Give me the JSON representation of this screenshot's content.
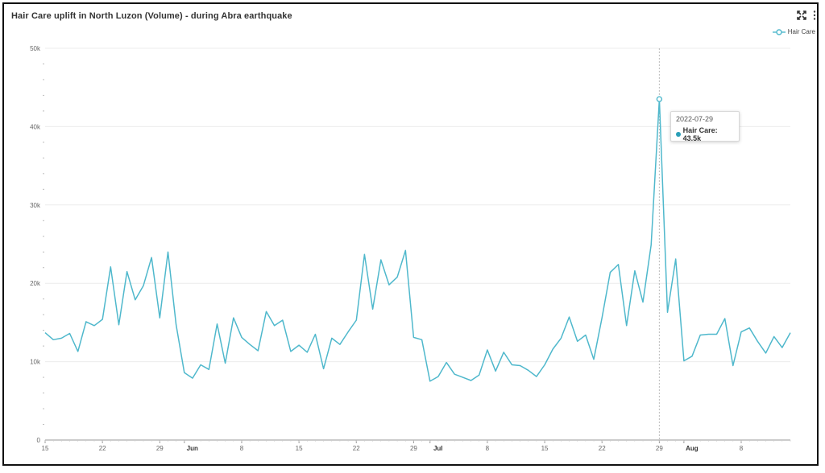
{
  "title": "Hair Care uplift in North Luzon (Volume) - during Abra earthquake",
  "toolbar": {
    "expand_icon": "expand-icon",
    "menu_icon": "kebab-menu-icon"
  },
  "tooltip": {
    "date": "2022-07-29",
    "label": "Hair Care: 43.5k"
  },
  "chart_data": {
    "type": "line",
    "title": "Hair Care uplift in North Luzon (Volume) - during Abra earthquake",
    "xlabel": "",
    "ylabel": "",
    "ylim": [
      0,
      50000
    ],
    "yticks": [
      "0",
      "10k",
      "20k",
      "30k",
      "40k",
      "50k"
    ],
    "xticks": [
      {
        "label": "15",
        "bold": false,
        "i": 0
      },
      {
        "label": "22",
        "bold": false,
        "i": 7
      },
      {
        "label": "29",
        "bold": false,
        "i": 14
      },
      {
        "label": "Jun",
        "bold": true,
        "i": 17
      },
      {
        "label": "8",
        "bold": false,
        "i": 24
      },
      {
        "label": "15",
        "bold": false,
        "i": 31
      },
      {
        "label": "22",
        "bold": false,
        "i": 38
      },
      {
        "label": "29",
        "bold": false,
        "i": 45
      },
      {
        "label": "Jul",
        "bold": true,
        "i": 47
      },
      {
        "label": "8",
        "bold": false,
        "i": 54
      },
      {
        "label": "15",
        "bold": false,
        "i": 61
      },
      {
        "label": "22",
        "bold": false,
        "i": 68
      },
      {
        "label": "29",
        "bold": false,
        "i": 75
      },
      {
        "label": "Aug",
        "bold": true,
        "i": 78
      },
      {
        "label": "8",
        "bold": false,
        "i": 85
      }
    ],
    "x_start": "2022-05-15",
    "x_end": "2022-08-15",
    "legend_position": "top-right",
    "grid": true,
    "highlight": {
      "date": "2022-07-29",
      "index": 75,
      "value": 43500
    },
    "series": [
      {
        "name": "Hair Care",
        "color": "#4fb8cc",
        "values": [
          13700,
          12800,
          13000,
          13600,
          11300,
          15100,
          14600,
          15400,
          22100,
          14700,
          21500,
          17900,
          19700,
          23300,
          15600,
          24000,
          14700,
          8600,
          7900,
          9600,
          9000,
          14800,
          9800,
          15600,
          13100,
          12200,
          11400,
          16400,
          14600,
          15300,
          11300,
          12100,
          11200,
          13500,
          9100,
          13000,
          12200,
          13800,
          15300,
          23700,
          16700,
          23000,
          19800,
          20800,
          24200,
          13100,
          12800,
          7500,
          8100,
          9900,
          8400,
          8000,
          7600,
          8300,
          11500,
          8800,
          11200,
          9600,
          9500,
          8900,
          8100,
          9600,
          11600,
          13000,
          15700,
          12600,
          13400,
          10300,
          15600,
          21400,
          22400,
          14600,
          21600,
          17600,
          24900,
          43500,
          16300,
          23100,
          10100,
          10700,
          13400,
          13500,
          13500,
          15500,
          9500,
          13800,
          14300,
          12600,
          11100,
          13200,
          11800,
          13700
        ]
      }
    ]
  }
}
